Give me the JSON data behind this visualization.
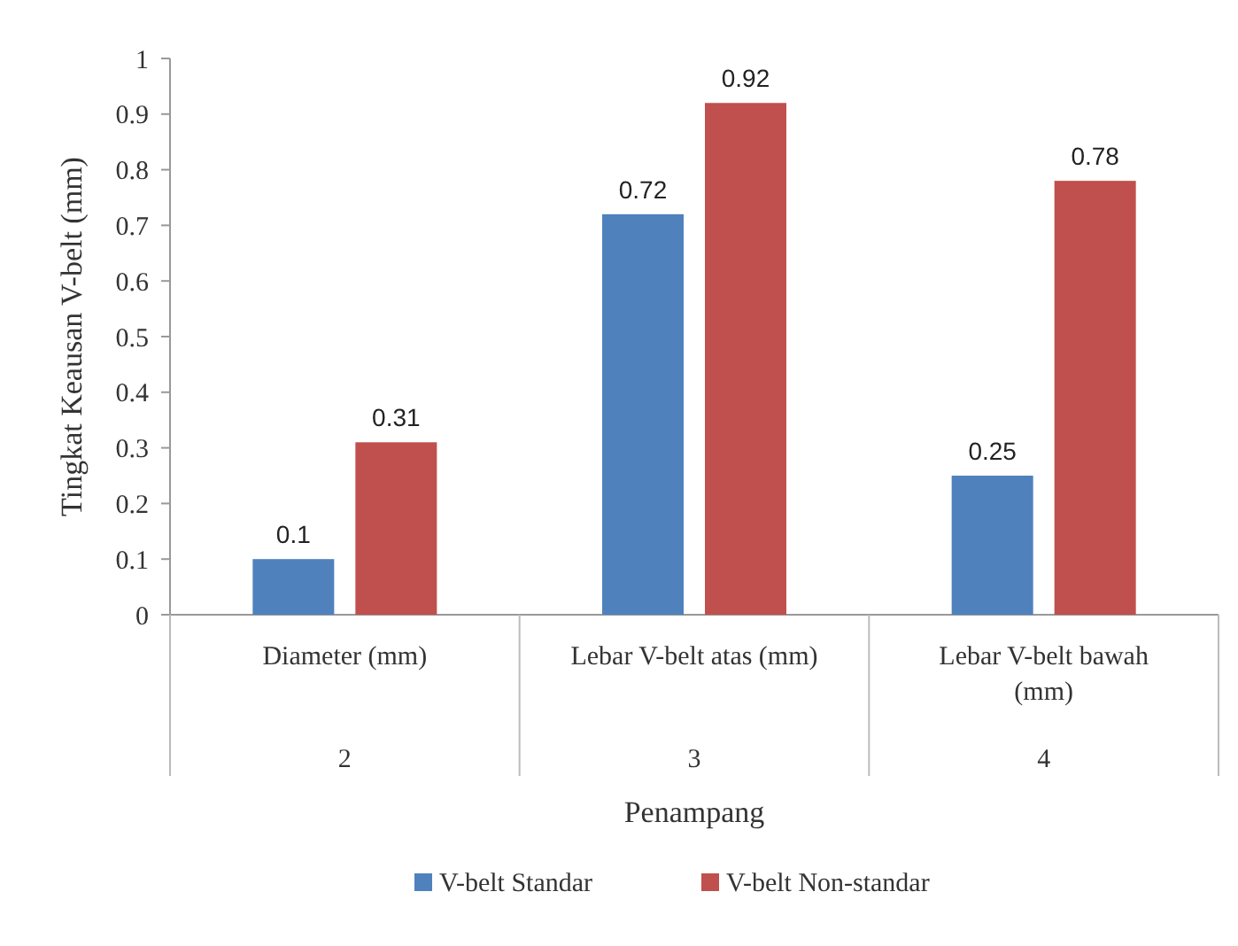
{
  "chart_data": {
    "type": "bar",
    "xlabel": "Penampang",
    "ylabel": "Tingkat Keausan V-belt (mm)",
    "categories": [
      "Diameter (mm)",
      "Lebar V-belt atas (mm)",
      "Lebar V-belt bawah (mm)"
    ],
    "annotations": [
      "2",
      "3",
      "4"
    ],
    "series": [
      {
        "name": "V-belt Standar",
        "color": "#4f81bd",
        "values": [
          0.1,
          0.72,
          0.25
        ]
      },
      {
        "name": "V-belt Non-standar",
        "color": "#c0504d",
        "values": [
          0.31,
          0.92,
          0.78
        ]
      }
    ],
    "ylim": [
      0,
      1
    ],
    "yticks": [
      0,
      0.1,
      0.2,
      0.3,
      0.4,
      0.5,
      0.6,
      0.7,
      0.8,
      0.9,
      1
    ],
    "data_labels": true,
    "legend": "bottom"
  }
}
